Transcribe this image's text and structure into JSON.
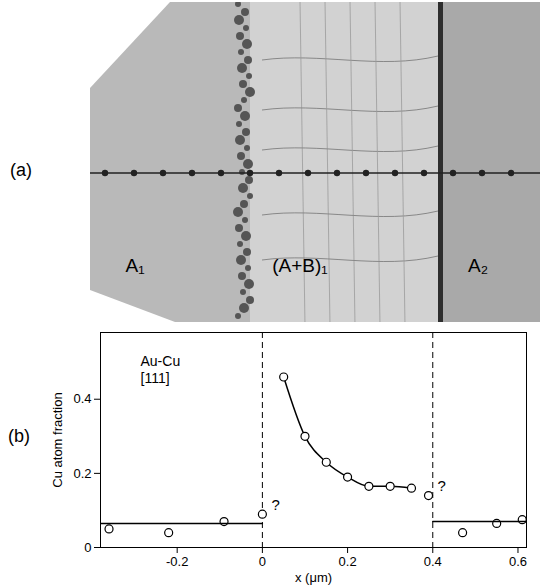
{
  "panel_a": {
    "label": "(a)",
    "regions": [
      "A₁",
      "(A+B)₁",
      "A₂"
    ]
  },
  "panel_b_label": "(b)",
  "chart_data": {
    "type": "line",
    "x_label": "x (μm)",
    "y_label": "Cu atom fraction",
    "annotations": [
      "Au-Cu",
      "[111]"
    ],
    "color": "#000000",
    "xlim": [
      -0.38,
      0.62
    ],
    "xticks": [
      -0.2,
      0,
      0.2,
      0.4,
      0.6
    ],
    "ylim": [
      0,
      0.58
    ],
    "yticks": [
      0,
      0.2,
      0.4
    ],
    "grid": false,
    "vertical_lines": {
      "x": [
        0,
        0.4
      ],
      "line_style": "dashed"
    },
    "series": [
      {
        "type": "scatter",
        "marker": "circle",
        "x": [
          -0.36,
          -0.22,
          -0.09
        ],
        "values": [
          0.05,
          0.04,
          0.07
        ]
      },
      {
        "type": "line",
        "line_style": "solid",
        "x": [
          -0.38,
          0
        ],
        "values": [
          0.065,
          0.065
        ]
      },
      {
        "type": "scatter",
        "marker": "circle",
        "annotation": "?",
        "x": [
          0,
          0.39
        ],
        "values": [
          0.09,
          0.14
        ]
      },
      {
        "type": "line",
        "line_style": "solid",
        "marker": "circle",
        "x": [
          0.05,
          0.1,
          0.15,
          0.2,
          0.25,
          0.3,
          0.35
        ],
        "values": [
          0.46,
          0.3,
          0.23,
          0.19,
          0.165,
          0.165,
          0.16
        ]
      },
      {
        "type": "scatter",
        "marker": "circle",
        "x": [
          0.47,
          0.55,
          0.61
        ],
        "values": [
          0.04,
          0.065,
          0.075
        ]
      },
      {
        "type": "line",
        "line_style": "solid",
        "x": [
          0.4,
          0.62
        ],
        "values": [
          0.07,
          0.07
        ]
      }
    ]
  }
}
